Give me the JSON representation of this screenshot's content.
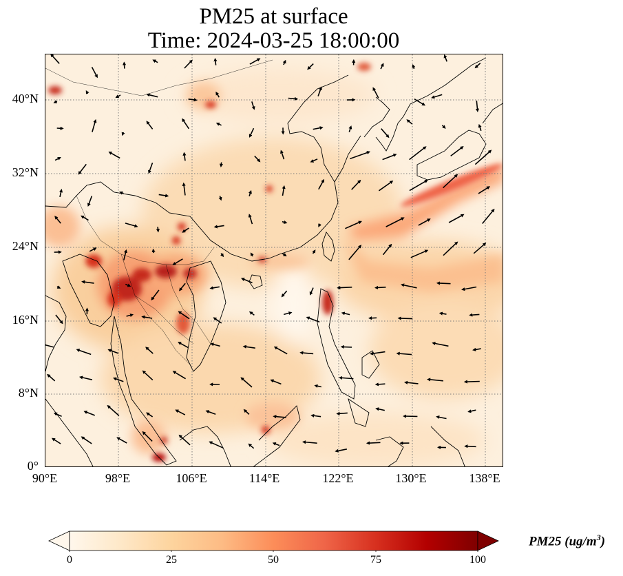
{
  "title_line1": "PM25 at surface",
  "title_line2": "Time: 2024-03-25 18:00:00",
  "lat_ticks": [
    "40°N",
    "32°N",
    "24°N",
    "16°N",
    "8°N",
    "0°"
  ],
  "lon_ticks": [
    "90°E",
    "98°E",
    "106°E",
    "114°E",
    "122°E",
    "130°E",
    "138°E"
  ],
  "map_extent": {
    "lon_min": 90,
    "lon_max": 140,
    "lat_min": 0,
    "lat_max": 45
  },
  "colorbar": {
    "label": "PM25 (ug/m",
    "label_sup": "3",
    "label_close": ")",
    "ticks": [
      "0",
      "25",
      "50",
      "75",
      "100"
    ],
    "range": [
      0,
      100
    ],
    "colormap": "OrRd",
    "colors": [
      "#fff7ec",
      "#fee8c8",
      "#fdd49e",
      "#fdbb84",
      "#fc8d59",
      "#ef6548",
      "#d7301f",
      "#b30000",
      "#7f0000"
    ],
    "extend": "both"
  },
  "graticule": "dotted gray lines every 8°"
}
